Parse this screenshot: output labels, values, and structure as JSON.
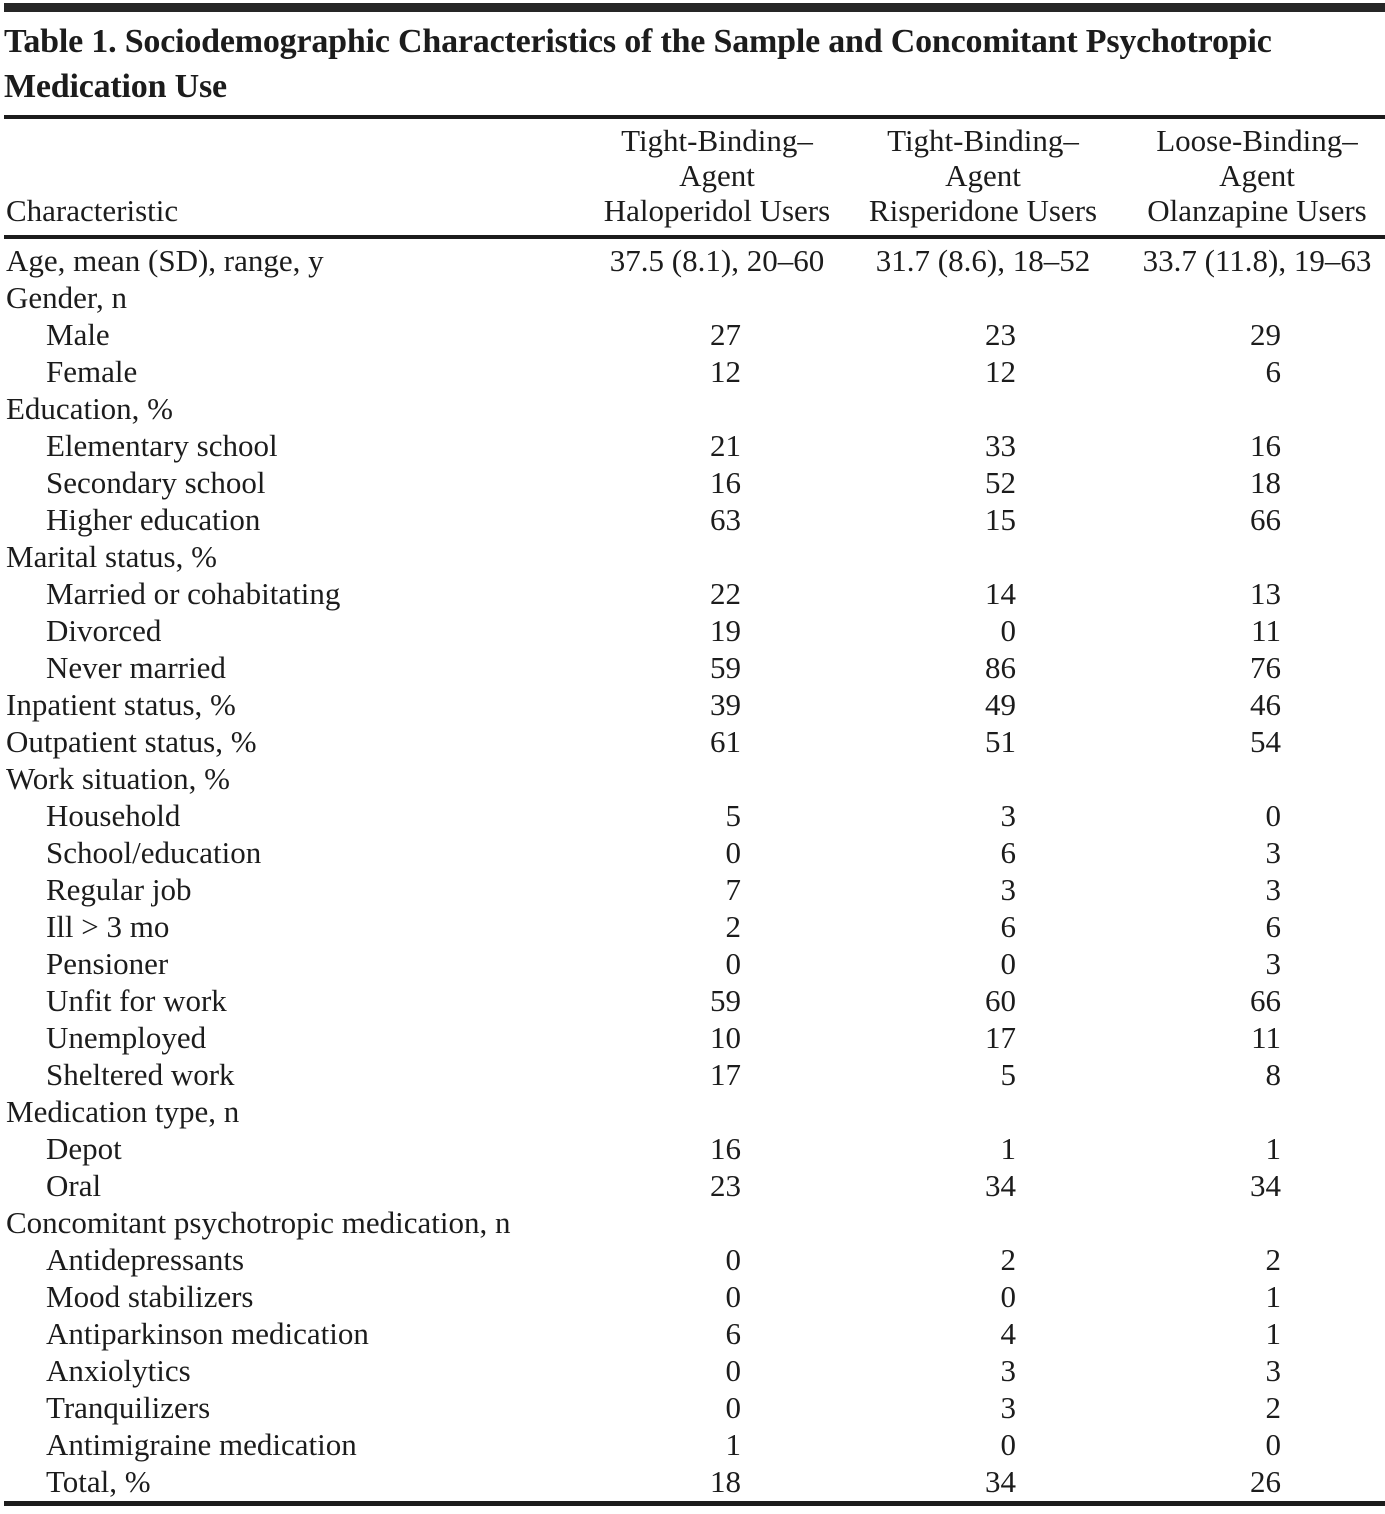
{
  "table": {
    "title_lines": [
      "Table 1. Sociodemographic Characteristics of the Sample and Concomitant Psychotropic",
      "Medication Use"
    ],
    "header": {
      "characteristic": "Characteristic",
      "col1_lines": [
        "Tight-Binding–",
        "Agent",
        "Haloperidol Users"
      ],
      "col2_lines": [
        "Tight-Binding–",
        "Agent",
        "Risperidone Users"
      ],
      "col3_lines": [
        "Loose-Binding–",
        "Agent",
        "Olanzapine Users"
      ]
    },
    "rows": [
      {
        "label": "Age, mean (SD), range, y",
        "indent": false,
        "type": "range",
        "values": [
          "37.5 (8.1), 20–60",
          "31.7 (8.6), 18–52",
          "33.7 (11.8), 19–63"
        ]
      },
      {
        "label": "Gender, n",
        "indent": false,
        "type": "group",
        "values": [
          "",
          "",
          ""
        ]
      },
      {
        "label": "Male",
        "indent": true,
        "type": "num",
        "values": [
          "27",
          "23",
          "29"
        ]
      },
      {
        "label": "Female",
        "indent": true,
        "type": "num",
        "values": [
          "12",
          "12",
          "6"
        ]
      },
      {
        "label": "Education, %",
        "indent": false,
        "type": "group",
        "values": [
          "",
          "",
          ""
        ]
      },
      {
        "label": "Elementary school",
        "indent": true,
        "type": "num",
        "values": [
          "21",
          "33",
          "16"
        ]
      },
      {
        "label": "Secondary school",
        "indent": true,
        "type": "num",
        "values": [
          "16",
          "52",
          "18"
        ]
      },
      {
        "label": "Higher education",
        "indent": true,
        "type": "num",
        "values": [
          "63",
          "15",
          "66"
        ]
      },
      {
        "label": "Marital status, %",
        "indent": false,
        "type": "group",
        "values": [
          "",
          "",
          ""
        ]
      },
      {
        "label": "Married or cohabitating",
        "indent": true,
        "type": "num",
        "values": [
          "22",
          "14",
          "13"
        ]
      },
      {
        "label": "Divorced",
        "indent": true,
        "type": "num",
        "values": [
          "19",
          "0",
          "11"
        ]
      },
      {
        "label": "Never married",
        "indent": true,
        "type": "num",
        "values": [
          "59",
          "86",
          "76"
        ]
      },
      {
        "label": "Inpatient status, %",
        "indent": false,
        "type": "num",
        "values": [
          "39",
          "49",
          "46"
        ]
      },
      {
        "label": "Outpatient status, %",
        "indent": false,
        "type": "num",
        "values": [
          "61",
          "51",
          "54"
        ]
      },
      {
        "label": "Work situation, %",
        "indent": false,
        "type": "group",
        "values": [
          "",
          "",
          ""
        ]
      },
      {
        "label": "Household",
        "indent": true,
        "type": "num",
        "values": [
          "5",
          "3",
          "0"
        ]
      },
      {
        "label": "School/education",
        "indent": true,
        "type": "num",
        "values": [
          "0",
          "6",
          "3"
        ]
      },
      {
        "label": "Regular job",
        "indent": true,
        "type": "num",
        "values": [
          "7",
          "3",
          "3"
        ]
      },
      {
        "label": "Ill > 3 mo",
        "indent": true,
        "type": "num",
        "values": [
          "2",
          "6",
          "6"
        ]
      },
      {
        "label": "Pensioner",
        "indent": true,
        "type": "num",
        "values": [
          "0",
          "0",
          "3"
        ]
      },
      {
        "label": "Unfit for work",
        "indent": true,
        "type": "num",
        "values": [
          "59",
          "60",
          "66"
        ]
      },
      {
        "label": "Unemployed",
        "indent": true,
        "type": "num",
        "values": [
          "10",
          "17",
          "11"
        ]
      },
      {
        "label": "Sheltered work",
        "indent": true,
        "type": "num",
        "values": [
          "17",
          "5",
          "8"
        ]
      },
      {
        "label": "Medication type, n",
        "indent": false,
        "type": "group",
        "values": [
          "",
          "",
          ""
        ]
      },
      {
        "label": "Depot",
        "indent": true,
        "type": "num",
        "values": [
          "16",
          "1",
          "1"
        ]
      },
      {
        "label": "Oral",
        "indent": true,
        "type": "num",
        "values": [
          "23",
          "34",
          "34"
        ]
      },
      {
        "label": "Concomitant psychotropic medication, n",
        "indent": false,
        "type": "group",
        "values": [
          "",
          "",
          ""
        ]
      },
      {
        "label": "Antidepressants",
        "indent": true,
        "type": "num",
        "values": [
          "0",
          "2",
          "2"
        ]
      },
      {
        "label": "Mood stabilizers",
        "indent": true,
        "type": "num",
        "values": [
          "0",
          "0",
          "1"
        ]
      },
      {
        "label": "Antiparkinson medication",
        "indent": true,
        "type": "num",
        "values": [
          "6",
          "4",
          "1"
        ]
      },
      {
        "label": "Anxiolytics",
        "indent": true,
        "type": "num",
        "values": [
          "0",
          "3",
          "3"
        ]
      },
      {
        "label": "Tranquilizers",
        "indent": true,
        "type": "num",
        "values": [
          "0",
          "3",
          "2"
        ]
      },
      {
        "label": "Antimigraine medication",
        "indent": true,
        "type": "num",
        "values": [
          "1",
          "0",
          "0"
        ]
      },
      {
        "label": "Total, %",
        "indent": true,
        "type": "num",
        "values": [
          "18",
          "34",
          "26"
        ]
      }
    ]
  }
}
